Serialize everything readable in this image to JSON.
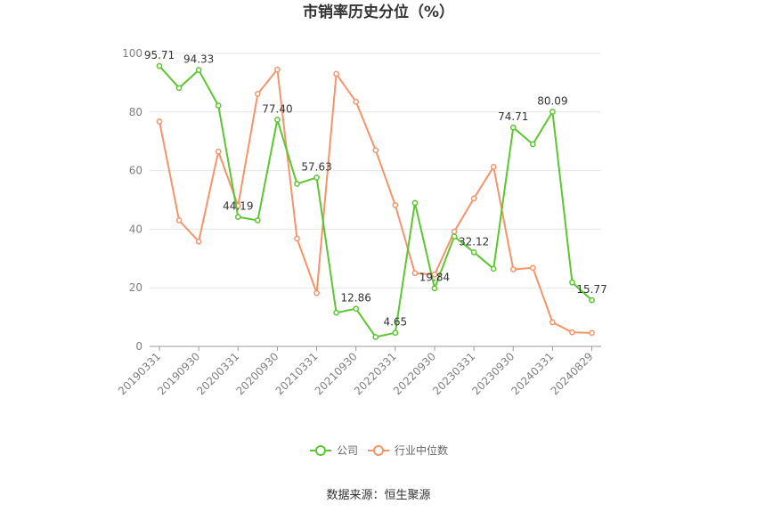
{
  "chart_data": {
    "type": "line",
    "title": "市销率历史分位（%）",
    "x_ticks": [
      "20190331",
      "20190930",
      "20200331",
      "20200930",
      "20210331",
      "20210930",
      "20220331",
      "20220930",
      "20230331",
      "20230930",
      "20240331",
      "20240829"
    ],
    "yticks": [
      0,
      20,
      40,
      60,
      80,
      100
    ],
    "ylim": [
      0,
      100
    ],
    "grid": true,
    "legend_position": "bottom",
    "series": [
      {
        "name": "公司",
        "color": "#5cc630",
        "values": [
          95.71,
          88.2,
          94.33,
          82.2,
          44.19,
          43.0,
          77.4,
          55.5,
          57.63,
          11.5,
          12.86,
          3.2,
          4.65,
          49.0,
          19.84,
          37.5,
          32.12,
          26.5,
          74.71,
          69.0,
          80.09,
          21.8,
          15.77
        ],
        "labels": {
          "0": "95.71",
          "2": "94.33",
          "4": "44.19",
          "6": "77.40",
          "8": "57.63",
          "10": "12.86",
          "12": "4.65",
          "14": "19.84",
          "16": "32.12",
          "18": "74.71",
          "20": "80.09",
          "22": "15.77"
        }
      },
      {
        "name": "行业中位数",
        "color": "#f5946a",
        "values": [
          76.8,
          43.0,
          35.8,
          66.5,
          48.0,
          86.2,
          94.5,
          36.8,
          18.2,
          93.0,
          83.5,
          67.0,
          48.2,
          25.0,
          24.5,
          39.2,
          50.5,
          61.3,
          26.3,
          26.8,
          8.2,
          4.8,
          4.6
        ]
      }
    ]
  },
  "source": "数据来源：恒生聚源"
}
